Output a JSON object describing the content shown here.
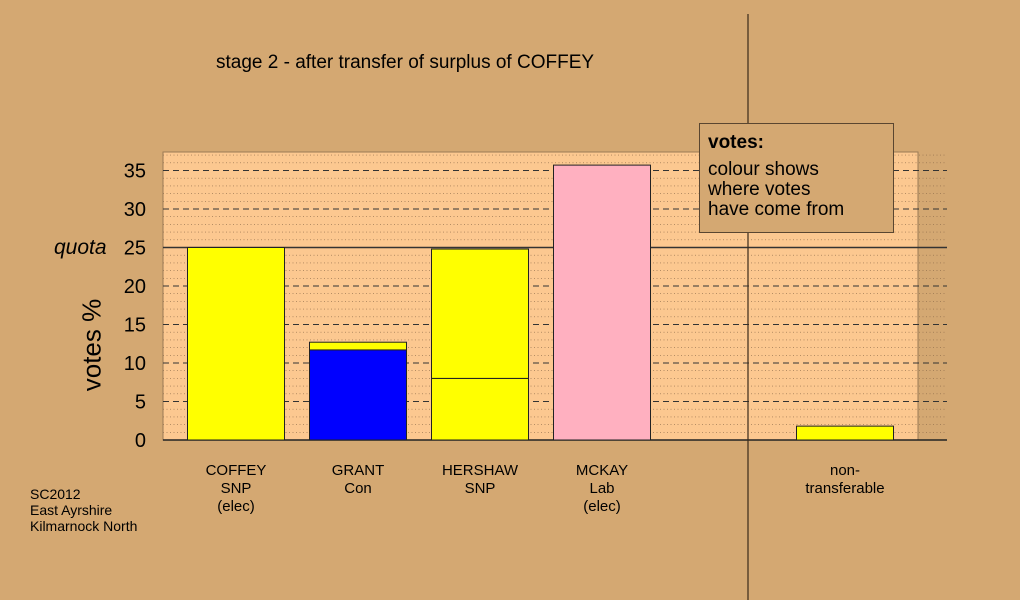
{
  "chart_data": {
    "type": "bar",
    "stacked": true,
    "title": "stage 2 - after transfer of surplus of COFFEY",
    "ylabel": "votes %",
    "ylim": [
      0,
      37.5
    ],
    "yticks": [
      0,
      5,
      10,
      15,
      20,
      25,
      30,
      35
    ],
    "quota": {
      "label": "quota",
      "value": 25
    },
    "categories": [
      {
        "lines": [
          "COFFEY",
          "SNP",
          "(elec)"
        ],
        "segments": [
          {
            "value": 25.0,
            "color": "#ffff00"
          }
        ]
      },
      {
        "lines": [
          "GRANT",
          "Con"
        ],
        "segments": [
          {
            "value": 11.7,
            "color": "#0000ff"
          },
          {
            "value": 1.0,
            "color": "#ffff00"
          }
        ]
      },
      {
        "lines": [
          "HERSHAW",
          "SNP"
        ],
        "segments": [
          {
            "value": 8.0,
            "color": "#ffff00"
          },
          {
            "value": 16.8,
            "color": "#ffff00"
          }
        ]
      },
      {
        "lines": [
          "MCKAY",
          "Lab",
          "(elec)"
        ],
        "segments": [
          {
            "value": 35.7,
            "color": "#ffb0c0"
          }
        ]
      },
      {
        "lines": [
          "non-",
          "transferable"
        ],
        "segments": [
          {
            "value": 1.8,
            "color": "#ffff00"
          }
        ]
      }
    ],
    "grid": true,
    "legend": {
      "position": "top-right",
      "title": "votes:",
      "lines": [
        "colour shows",
        "where votes",
        "have come from"
      ]
    }
  },
  "footnote": [
    "SC2012",
    "East Ayrshire",
    "Kilmarnock North"
  ],
  "colors": {
    "background": "#d4a872",
    "plot_bg": "#fcc890",
    "snp": "#ffff00",
    "con": "#0000ff",
    "lab": "#ffb0c0"
  }
}
